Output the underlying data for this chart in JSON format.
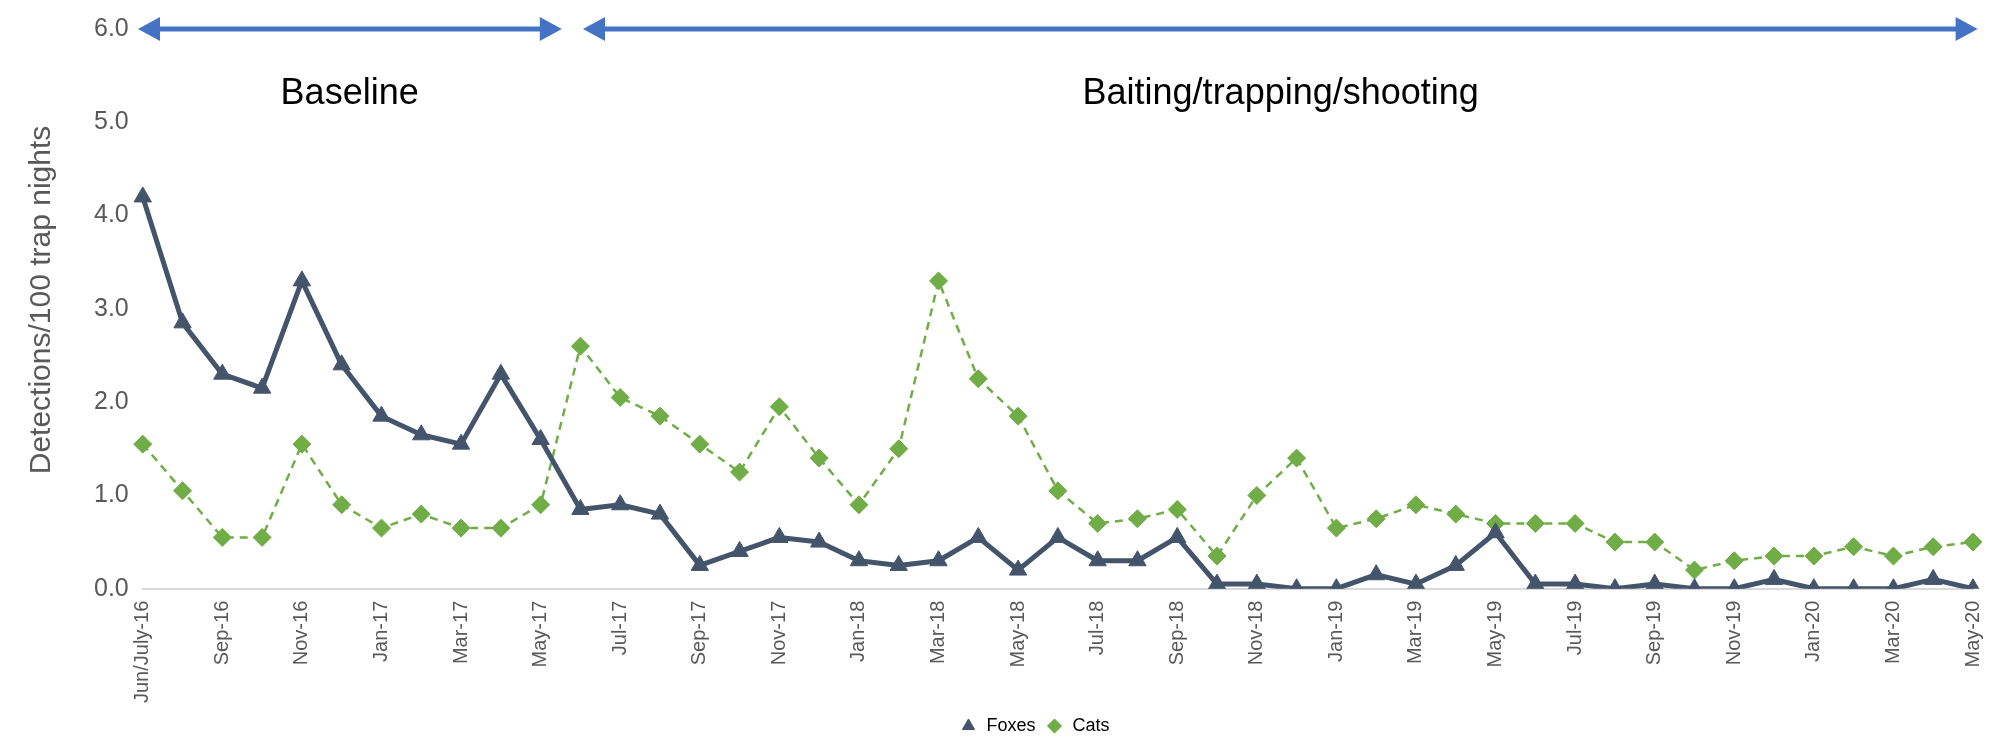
{
  "chart_data": {
    "type": "line",
    "ylabel": "Detections/100 trap nights",
    "categories": [
      "Jun/July-16",
      null,
      "Sep-16",
      null,
      "Nov-16",
      null,
      "Jan-17",
      null,
      "Mar-17",
      null,
      "May-17",
      null,
      "Jul-17",
      null,
      "Sep-17",
      null,
      "Nov-17",
      null,
      "Jan-18",
      null,
      "Mar-18",
      null,
      "May-18",
      null,
      "Jul-18",
      null,
      "Sep-18",
      null,
      "Nov-18",
      null,
      "Jan-19",
      null,
      "Mar-19",
      null,
      "May-19",
      null,
      "Jul-19",
      null,
      "Sep-19",
      null,
      "Nov-19",
      null,
      "Jan-20",
      null,
      "Mar-20",
      null,
      "May-20"
    ],
    "series": [
      {
        "name": "Foxes",
        "color": "#44546a",
        "marker": "triangle",
        "line_style": "solid",
        "values": [
          4.2,
          2.85,
          2.3,
          2.15,
          3.3,
          2.4,
          1.85,
          1.65,
          1.55,
          2.3,
          1.6,
          0.85,
          0.9,
          0.8,
          0.25,
          0.4,
          0.55,
          0.5,
          0.3,
          0.25,
          0.3,
          0.55,
          0.2,
          0.55,
          0.3,
          0.3,
          0.55,
          0.05,
          0.05,
          0,
          0,
          0.15,
          0.05,
          0.25,
          0.6,
          0.05,
          0.05,
          0,
          0.05,
          0,
          0,
          0.1,
          0,
          0,
          0,
          0.1,
          0
        ]
      },
      {
        "name": "Cats",
        "color": "#70ad47",
        "marker": "diamond",
        "line_style": "dashed",
        "values": [
          1.55,
          1.05,
          0.55,
          0.55,
          1.55,
          0.9,
          0.65,
          0.8,
          0.65,
          0.65,
          0.9,
          2.6,
          2.05,
          1.85,
          1.55,
          1.25,
          1.95,
          1.4,
          0.9,
          1.5,
          3.3,
          2.25,
          1.85,
          1.05,
          0.7,
          0.75,
          0.85,
          0.35,
          1.0,
          1.4,
          0.65,
          0.75,
          0.9,
          0.8,
          0.7,
          0.7,
          0.7,
          0.5,
          0.5,
          0.2,
          0.3,
          0.35,
          0.35,
          0.45,
          0.35,
          0.45,
          0.5
        ]
      }
    ],
    "ylim": [
      0,
      6
    ],
    "yticks": [
      {
        "value": 0,
        "label": "0.0"
      },
      {
        "value": 1,
        "label": "1.0"
      },
      {
        "value": 2,
        "label": "2.0"
      },
      {
        "value": 3,
        "label": "3.0"
      },
      {
        "value": 4,
        "label": "4.0"
      },
      {
        "value": 5,
        "label": "5.0"
      },
      {
        "value": 6,
        "label": "6.0"
      }
    ],
    "grid": false,
    "legend": "bottom",
    "annotations": [
      "Baseline",
      "Baiting/trapping/shooting"
    ]
  }
}
